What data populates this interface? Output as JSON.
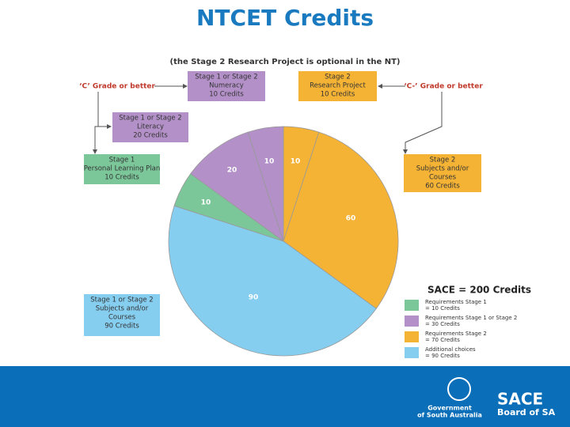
{
  "title": "NTCET Credits",
  "subtitle": "(the Stage 2 Research Project is optional in the NT)",
  "chart_data": {
    "type": "pie",
    "values": [
      10,
      60,
      90,
      10,
      20,
      10
    ],
    "colors": [
      "#f5b335",
      "#f5b335",
      "#86cef0",
      "#7cc79a",
      "#b391c8",
      "#b391c8"
    ]
  },
  "boxes": [
    {
      "lines": [
        "Stage 1 or Stage 2",
        "Numeracy",
        "10 Credits"
      ],
      "color": "#b391c8"
    },
    {
      "lines": [
        "Stage 2",
        "Research Project",
        "10 Credits"
      ],
      "color": "#f5b335"
    },
    {
      "lines": [
        "Stage 1 or Stage 2",
        "Literacy",
        "20 Credits"
      ],
      "color": "#b391c8"
    },
    {
      "lines": [
        "Stage 1",
        "Personal Learning Plan",
        "10 Credits"
      ],
      "color": "#7cc79a"
    },
    {
      "lines": [
        "Stage 2",
        "Subjects and/or",
        "Courses",
        "60 Credits"
      ],
      "color": "#f5b335"
    },
    {
      "lines": [
        "Stage 1 or Stage 2",
        "Subjects and/or",
        "Courses",
        "90 Credits"
      ],
      "color": "#86cef0"
    }
  ],
  "annotations": [
    "‘C’ Grade or better",
    "‘C-’ Grade or better"
  ],
  "legend": {
    "title": "SACE = 200 Credits",
    "items": [
      {
        "lines": [
          "Requirements Stage 1",
          "= 10 Credits"
        ],
        "color": "#7cc79a"
      },
      {
        "lines": [
          "Requirements Stage 1 or Stage 2",
          "= 30 Credits"
        ],
        "color": "#b391c8"
      },
      {
        "lines": [
          "Requirements Stage 2",
          "= 70 Credits"
        ],
        "color": "#f5b335"
      },
      {
        "lines": [
          "Additional choices",
          "= 90 Credits"
        ],
        "color": "#86cef0"
      }
    ]
  },
  "footer": {
    "government": [
      "Government",
      "of South Australia"
    ],
    "sace": [
      "SACE",
      "Board of SA"
    ]
  }
}
